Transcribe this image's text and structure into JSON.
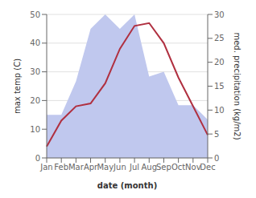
{
  "chart_data": {
    "type": "line",
    "categories": [
      "Jan",
      "Feb",
      "Mar",
      "Apr",
      "May",
      "Jun",
      "Jul",
      "Aug",
      "Sep",
      "Oct",
      "Nov",
      "Dec"
    ],
    "xlabel": "date (month)",
    "ylabel": "max temp (C)",
    "y2label": "med. precipitation (kg/m2)",
    "series": [
      {
        "type": "area",
        "color": "#c0c8ee",
        "axis": "y2",
        "values": [
          9,
          9,
          16,
          27,
          30,
          27,
          30,
          17,
          18,
          11,
          11,
          8
        ]
      },
      {
        "type": "line",
        "color": "#b03040",
        "values": [
          4,
          13,
          18,
          19,
          26,
          38,
          46,
          47,
          40,
          28,
          18,
          8
        ]
      }
    ],
    "ylim": [
      0,
      50
    ],
    "yticks": [
      0,
      10,
      20,
      30,
      40,
      50
    ],
    "y2lim": [
      0,
      30
    ],
    "y2ticks": [
      0,
      5,
      10,
      15,
      20,
      25,
      30
    ],
    "grid": true
  }
}
